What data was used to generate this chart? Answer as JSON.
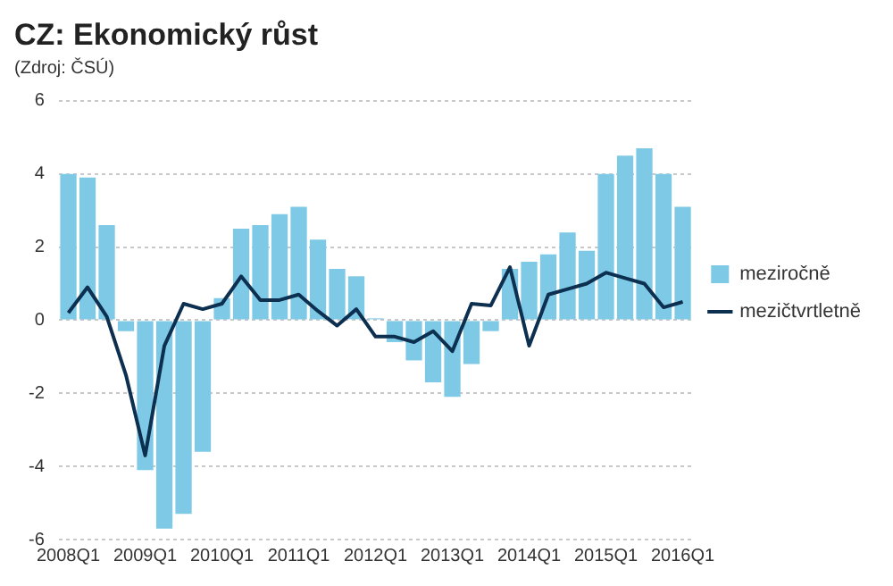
{
  "chart_data": {
    "type": "bar",
    "title": "CZ: Ekonomický růst",
    "subtitle": "(Zdroj: ČSÚ)",
    "categories": [
      "2008Q1",
      null,
      null,
      null,
      "2009Q1",
      null,
      null,
      null,
      "2010Q1",
      null,
      null,
      null,
      "2011Q1",
      null,
      null,
      null,
      "2012Q1",
      null,
      null,
      null,
      "2013Q1",
      null,
      null,
      null,
      "2014Q1",
      null,
      null,
      null,
      "2015Q1",
      null,
      null,
      null,
      "2016Q1"
    ],
    "series": [
      {
        "name": "meziročně",
        "color": "#7ecae6",
        "values": [
          4.0,
          3.9,
          2.6,
          -0.3,
          -4.1,
          -5.7,
          -5.3,
          -3.6,
          0.6,
          2.5,
          2.6,
          2.9,
          3.1,
          2.2,
          1.4,
          1.2,
          0.05,
          -0.6,
          -1.1,
          -1.7,
          -2.1,
          -1.2,
          -0.3,
          1.4,
          1.6,
          1.8,
          2.4,
          1.9,
          4.0,
          4.5,
          4.7,
          4.0,
          3.1
        ]
      },
      {
        "name": "mezičtvrtletně",
        "type": "line",
        "color": "#0d2f50",
        "values": [
          0.2,
          0.9,
          0.1,
          -1.5,
          -3.7,
          -0.7,
          0.45,
          0.3,
          0.45,
          1.2,
          0.55,
          0.55,
          0.7,
          0.25,
          -0.15,
          0.3,
          -0.45,
          -0.45,
          -0.6,
          -0.3,
          -0.85,
          0.45,
          0.4,
          1.45,
          -0.7,
          0.7,
          0.85,
          1.0,
          1.3,
          1.15,
          1.0,
          0.35,
          0.5
        ]
      }
    ],
    "ylim": [
      -6,
      6
    ],
    "yticks": [
      -6,
      -4,
      -2,
      0,
      2,
      4,
      6
    ],
    "grid": "y",
    "legend": "right",
    "marker": "none",
    "line_style": "solid"
  }
}
